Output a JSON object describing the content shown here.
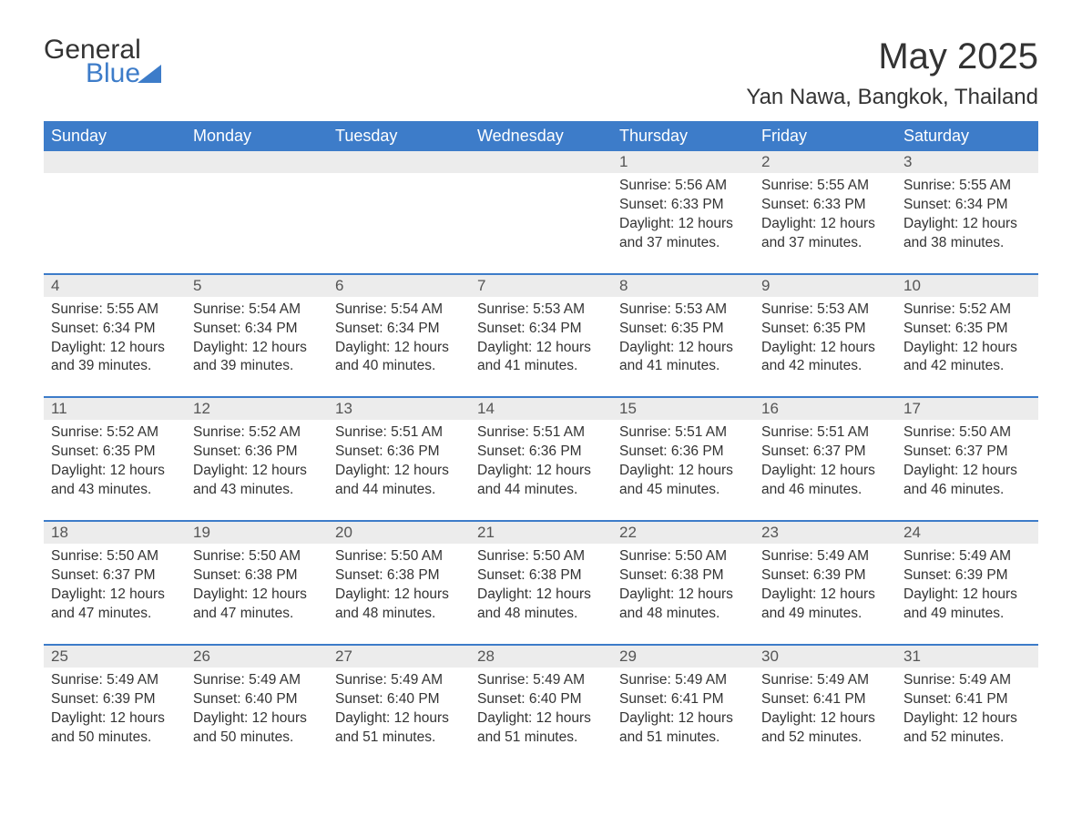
{
  "logo": {
    "word1": "General",
    "word2": "Blue"
  },
  "header": {
    "month_title": "May 2025",
    "location": "Yan Nawa, Bangkok, Thailand"
  },
  "colors": {
    "header_bg": "#3d7cc9",
    "header_text": "#ffffff",
    "daynum_bg": "#ececec",
    "daynum_text": "#555555",
    "body_text": "#333333",
    "rule": "#3d7cc9",
    "logo_blue": "#3d7cc9"
  },
  "day_headers": [
    "Sunday",
    "Monday",
    "Tuesday",
    "Wednesday",
    "Thursday",
    "Friday",
    "Saturday"
  ],
  "weeks": [
    [
      null,
      null,
      null,
      null,
      {
        "n": "1",
        "sr": "Sunrise: 5:56 AM",
        "ss": "Sunset: 6:33 PM",
        "d1": "Daylight: 12 hours",
        "d2": "and 37 minutes."
      },
      {
        "n": "2",
        "sr": "Sunrise: 5:55 AM",
        "ss": "Sunset: 6:33 PM",
        "d1": "Daylight: 12 hours",
        "d2": "and 37 minutes."
      },
      {
        "n": "3",
        "sr": "Sunrise: 5:55 AM",
        "ss": "Sunset: 6:34 PM",
        "d1": "Daylight: 12 hours",
        "d2": "and 38 minutes."
      }
    ],
    [
      {
        "n": "4",
        "sr": "Sunrise: 5:55 AM",
        "ss": "Sunset: 6:34 PM",
        "d1": "Daylight: 12 hours",
        "d2": "and 39 minutes."
      },
      {
        "n": "5",
        "sr": "Sunrise: 5:54 AM",
        "ss": "Sunset: 6:34 PM",
        "d1": "Daylight: 12 hours",
        "d2": "and 39 minutes."
      },
      {
        "n": "6",
        "sr": "Sunrise: 5:54 AM",
        "ss": "Sunset: 6:34 PM",
        "d1": "Daylight: 12 hours",
        "d2": "and 40 minutes."
      },
      {
        "n": "7",
        "sr": "Sunrise: 5:53 AM",
        "ss": "Sunset: 6:34 PM",
        "d1": "Daylight: 12 hours",
        "d2": "and 41 minutes."
      },
      {
        "n": "8",
        "sr": "Sunrise: 5:53 AM",
        "ss": "Sunset: 6:35 PM",
        "d1": "Daylight: 12 hours",
        "d2": "and 41 minutes."
      },
      {
        "n": "9",
        "sr": "Sunrise: 5:53 AM",
        "ss": "Sunset: 6:35 PM",
        "d1": "Daylight: 12 hours",
        "d2": "and 42 minutes."
      },
      {
        "n": "10",
        "sr": "Sunrise: 5:52 AM",
        "ss": "Sunset: 6:35 PM",
        "d1": "Daylight: 12 hours",
        "d2": "and 42 minutes."
      }
    ],
    [
      {
        "n": "11",
        "sr": "Sunrise: 5:52 AM",
        "ss": "Sunset: 6:35 PM",
        "d1": "Daylight: 12 hours",
        "d2": "and 43 minutes."
      },
      {
        "n": "12",
        "sr": "Sunrise: 5:52 AM",
        "ss": "Sunset: 6:36 PM",
        "d1": "Daylight: 12 hours",
        "d2": "and 43 minutes."
      },
      {
        "n": "13",
        "sr": "Sunrise: 5:51 AM",
        "ss": "Sunset: 6:36 PM",
        "d1": "Daylight: 12 hours",
        "d2": "and 44 minutes."
      },
      {
        "n": "14",
        "sr": "Sunrise: 5:51 AM",
        "ss": "Sunset: 6:36 PM",
        "d1": "Daylight: 12 hours",
        "d2": "and 44 minutes."
      },
      {
        "n": "15",
        "sr": "Sunrise: 5:51 AM",
        "ss": "Sunset: 6:36 PM",
        "d1": "Daylight: 12 hours",
        "d2": "and 45 minutes."
      },
      {
        "n": "16",
        "sr": "Sunrise: 5:51 AM",
        "ss": "Sunset: 6:37 PM",
        "d1": "Daylight: 12 hours",
        "d2": "and 46 minutes."
      },
      {
        "n": "17",
        "sr": "Sunrise: 5:50 AM",
        "ss": "Sunset: 6:37 PM",
        "d1": "Daylight: 12 hours",
        "d2": "and 46 minutes."
      }
    ],
    [
      {
        "n": "18",
        "sr": "Sunrise: 5:50 AM",
        "ss": "Sunset: 6:37 PM",
        "d1": "Daylight: 12 hours",
        "d2": "and 47 minutes."
      },
      {
        "n": "19",
        "sr": "Sunrise: 5:50 AM",
        "ss": "Sunset: 6:38 PM",
        "d1": "Daylight: 12 hours",
        "d2": "and 47 minutes."
      },
      {
        "n": "20",
        "sr": "Sunrise: 5:50 AM",
        "ss": "Sunset: 6:38 PM",
        "d1": "Daylight: 12 hours",
        "d2": "and 48 minutes."
      },
      {
        "n": "21",
        "sr": "Sunrise: 5:50 AM",
        "ss": "Sunset: 6:38 PM",
        "d1": "Daylight: 12 hours",
        "d2": "and 48 minutes."
      },
      {
        "n": "22",
        "sr": "Sunrise: 5:50 AM",
        "ss": "Sunset: 6:38 PM",
        "d1": "Daylight: 12 hours",
        "d2": "and 48 minutes."
      },
      {
        "n": "23",
        "sr": "Sunrise: 5:49 AM",
        "ss": "Sunset: 6:39 PM",
        "d1": "Daylight: 12 hours",
        "d2": "and 49 minutes."
      },
      {
        "n": "24",
        "sr": "Sunrise: 5:49 AM",
        "ss": "Sunset: 6:39 PM",
        "d1": "Daylight: 12 hours",
        "d2": "and 49 minutes."
      }
    ],
    [
      {
        "n": "25",
        "sr": "Sunrise: 5:49 AM",
        "ss": "Sunset: 6:39 PM",
        "d1": "Daylight: 12 hours",
        "d2": "and 50 minutes."
      },
      {
        "n": "26",
        "sr": "Sunrise: 5:49 AM",
        "ss": "Sunset: 6:40 PM",
        "d1": "Daylight: 12 hours",
        "d2": "and 50 minutes."
      },
      {
        "n": "27",
        "sr": "Sunrise: 5:49 AM",
        "ss": "Sunset: 6:40 PM",
        "d1": "Daylight: 12 hours",
        "d2": "and 51 minutes."
      },
      {
        "n": "28",
        "sr": "Sunrise: 5:49 AM",
        "ss": "Sunset: 6:40 PM",
        "d1": "Daylight: 12 hours",
        "d2": "and 51 minutes."
      },
      {
        "n": "29",
        "sr": "Sunrise: 5:49 AM",
        "ss": "Sunset: 6:41 PM",
        "d1": "Daylight: 12 hours",
        "d2": "and 51 minutes."
      },
      {
        "n": "30",
        "sr": "Sunrise: 5:49 AM",
        "ss": "Sunset: 6:41 PM",
        "d1": "Daylight: 12 hours",
        "d2": "and 52 minutes."
      },
      {
        "n": "31",
        "sr": "Sunrise: 5:49 AM",
        "ss": "Sunset: 6:41 PM",
        "d1": "Daylight: 12 hours",
        "d2": "and 52 minutes."
      }
    ]
  ]
}
